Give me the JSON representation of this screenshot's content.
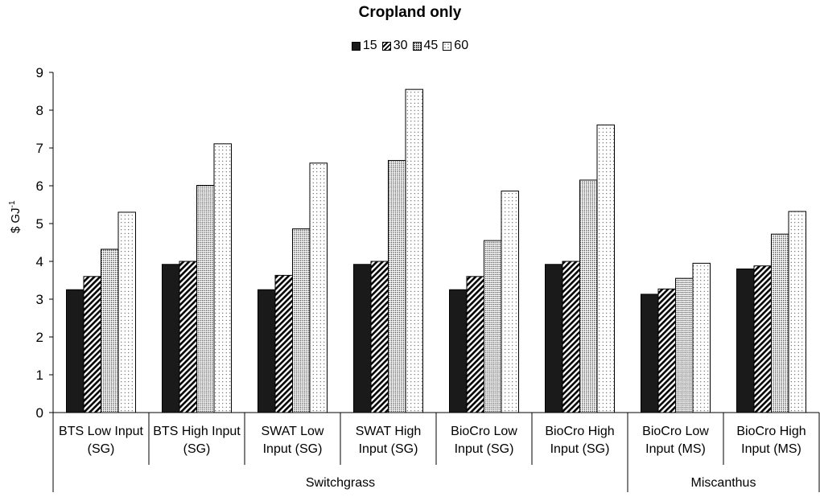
{
  "chart_data": {
    "type": "bar",
    "title": "Cropland only",
    "ylabel": "$ GJ",
    "ylabel_exponent": "-1",
    "ylim": [
      0,
      9
    ],
    "yticks": [
      "0",
      "1",
      "2",
      "3",
      "4",
      "5",
      "6",
      "7",
      "8",
      "9"
    ],
    "categories": [
      [
        "BTS Low Input",
        "(SG)"
      ],
      [
        "BTS High Input",
        "(SG)"
      ],
      [
        "SWAT Low",
        "Input (SG)"
      ],
      [
        "SWAT High",
        "Input (SG)"
      ],
      [
        "BioCro Low",
        "Input (SG)"
      ],
      [
        "BioCro High",
        "Input (SG)"
      ],
      [
        "BioCro Low",
        "Input (MS)"
      ],
      [
        "BioCro High",
        "Input (MS)"
      ]
    ],
    "groups": [
      {
        "label": "Switchgrass",
        "count": 6
      },
      {
        "label": "Miscanthus",
        "count": 2
      }
    ],
    "legend_position": "top-center",
    "series": [
      {
        "name": "15",
        "pattern": "solid",
        "values": [
          3.25,
          3.92,
          3.25,
          3.92,
          3.25,
          3.92,
          3.13,
          3.8
        ]
      },
      {
        "name": "30",
        "pattern": "diagonal",
        "values": [
          3.6,
          4.0,
          3.63,
          4.0,
          3.6,
          4.0,
          3.27,
          3.88
        ]
      },
      {
        "name": "45",
        "pattern": "dense-dots",
        "values": [
          4.32,
          6.01,
          4.86,
          6.67,
          4.55,
          6.15,
          3.55,
          4.72
        ]
      },
      {
        "name": "60",
        "pattern": "sparse-dots",
        "values": [
          5.3,
          7.11,
          6.6,
          8.55,
          5.86,
          7.61,
          3.95,
          5.32
        ]
      }
    ],
    "grid": false
  }
}
